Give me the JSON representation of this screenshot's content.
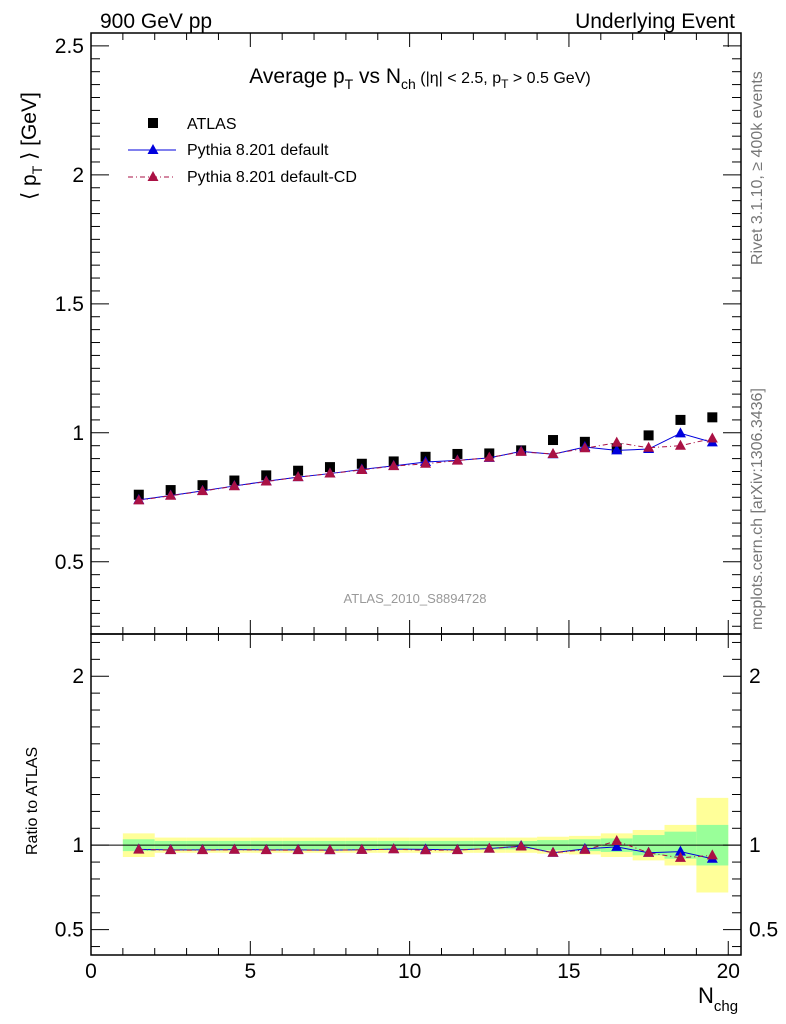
{
  "header": {
    "left": "900 GeV pp",
    "right": "Underlying Event"
  },
  "side_labels": {
    "rivet": "Rivet 3.1.10, ≥ 400k events",
    "mcplots": "mcplots.cern.ch [arXiv:1306.3436]"
  },
  "watermark": "ATLAS_2010_S8894728",
  "chart_data": [
    {
      "type": "scatter",
      "panel": "main",
      "title_parts": {
        "prefix": "Average p",
        "prefix_sub": "T",
        "mid": " vs N",
        "mid_sub": "ch",
        "cuts_a": " (|η| < 2.5, p",
        "cuts_sub": "T",
        "cuts_b": " > 0.5 GeV)"
      },
      "ylabel": "⟨ p_T ⟩ [GeV]",
      "ylabel_parts": {
        "open": "⟨ p",
        "sub": "T",
        "close": " ⟩ [GeV]"
      },
      "xlim": [
        0,
        20.4
      ],
      "ylim": [
        0.22,
        2.55
      ],
      "yticks": [
        0.5,
        1,
        1.5,
        2,
        2.5
      ],
      "ytick_labels": [
        "0.5",
        "1",
        "1.5",
        "2",
        "2.5"
      ],
      "x": [
        1.5,
        2.5,
        3.5,
        4.5,
        5.5,
        6.5,
        7.5,
        8.5,
        9.5,
        10.5,
        11.5,
        12.5,
        13.5,
        14.5,
        15.5,
        16.5,
        17.5,
        18.5,
        19.5
      ],
      "legend_position": "top-left",
      "series": [
        {
          "name": "ATLAS",
          "marker": "square",
          "color": "#000000",
          "values": [
            0.76,
            0.778,
            0.797,
            0.815,
            0.835,
            0.853,
            0.867,
            0.88,
            0.889,
            0.907,
            0.918,
            0.92,
            0.932,
            0.972,
            0.965,
            0.94,
            0.99,
            1.05,
            1.06
          ]
        },
        {
          "name": "Pythia 8.201 default",
          "marker": "triangle",
          "color": "#0000dd",
          "line": "solid",
          "values": [
            0.74,
            0.757,
            0.775,
            0.794,
            0.812,
            0.828,
            0.842,
            0.858,
            0.872,
            0.887,
            0.893,
            0.903,
            0.928,
            0.917,
            0.945,
            0.932,
            0.937,
            0.998,
            0.963
          ]
        },
        {
          "name": "Pythia 8.201 default-CD",
          "marker": "triangle",
          "color": "#aa1144",
          "line": "dashdot",
          "values": [
            0.738,
            0.756,
            0.774,
            0.793,
            0.811,
            0.828,
            0.842,
            0.856,
            0.871,
            0.88,
            0.892,
            0.904,
            0.926,
            0.918,
            0.94,
            0.962,
            0.942,
            0.95,
            0.978
          ]
        }
      ]
    },
    {
      "type": "scatter",
      "panel": "ratio",
      "ylabel": "Ratio to ATLAS",
      "xlabel": "N_chg",
      "xlabel_parts": {
        "main": "N",
        "sub": "chg"
      },
      "xlim": [
        0,
        20.4
      ],
      "ylim": [
        0.35,
        2.25
      ],
      "xticks": [
        0,
        5,
        10,
        15,
        20
      ],
      "xtick_labels": [
        "0",
        "5",
        "10",
        "15",
        "20"
      ],
      "yticks": [
        0.5,
        1,
        2
      ],
      "ytick_labels": [
        "0.5",
        "1",
        "2"
      ],
      "x": [
        1.5,
        2.5,
        3.5,
        4.5,
        5.5,
        6.5,
        7.5,
        8.5,
        9.5,
        10.5,
        11.5,
        12.5,
        13.5,
        14.5,
        15.5,
        16.5,
        17.5,
        18.5,
        19.5
      ],
      "bins": [
        [
          1,
          2
        ],
        [
          2,
          3
        ],
        [
          3,
          4
        ],
        [
          4,
          5
        ],
        [
          5,
          6
        ],
        [
          6,
          7
        ],
        [
          7,
          8
        ],
        [
          8,
          9
        ],
        [
          9,
          10
        ],
        [
          10,
          11
        ],
        [
          11,
          12
        ],
        [
          12,
          13
        ],
        [
          13,
          14
        ],
        [
          14,
          15
        ],
        [
          15,
          16
        ],
        [
          16,
          17
        ],
        [
          17,
          18
        ],
        [
          18,
          19
        ],
        [
          19,
          20
        ]
      ],
      "band_stat_halfwidth": [
        0.035,
        0.025,
        0.025,
        0.025,
        0.025,
        0.025,
        0.025,
        0.025,
        0.025,
        0.025,
        0.025,
        0.025,
        0.025,
        0.03,
        0.035,
        0.04,
        0.06,
        0.08,
        0.12
      ],
      "band_total_halfwidth": [
        0.07,
        0.045,
        0.045,
        0.045,
        0.045,
        0.045,
        0.045,
        0.045,
        0.045,
        0.045,
        0.045,
        0.045,
        0.045,
        0.05,
        0.055,
        0.07,
        0.09,
        0.12,
        0.28
      ],
      "band_colors": {
        "stat": "#99ff99",
        "total": "#ffff99"
      },
      "series": [
        {
          "name": "Pythia 8.201 default",
          "color": "#0000dd",
          "values": [
            0.975,
            0.972,
            0.972,
            0.974,
            0.972,
            0.972,
            0.971,
            0.973,
            0.977,
            0.975,
            0.972,
            0.98,
            0.995,
            0.955,
            0.978,
            0.99,
            0.955,
            0.962,
            0.92
          ]
        },
        {
          "name": "Pythia 8.201 default-CD",
          "color": "#aa1144",
          "values": [
            0.974,
            0.971,
            0.971,
            0.973,
            0.971,
            0.971,
            0.971,
            0.972,
            0.976,
            0.97,
            0.971,
            0.98,
            0.992,
            0.955,
            0.972,
            1.025,
            0.955,
            0.925,
            0.94
          ]
        }
      ]
    }
  ]
}
